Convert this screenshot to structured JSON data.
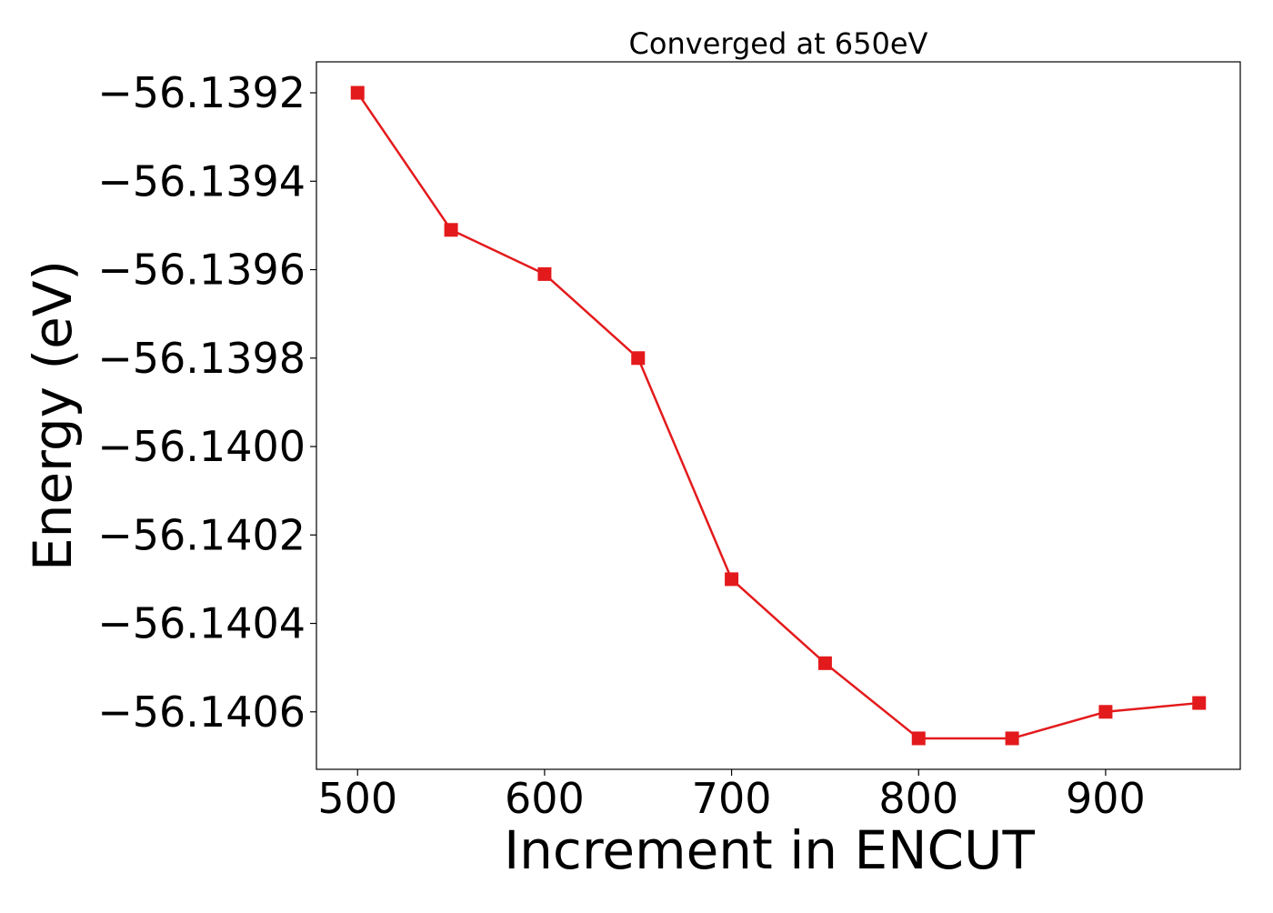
{
  "chart_data": {
    "type": "line",
    "title": "Converged at 650eV",
    "xlabel": "Increment in ENCUT",
    "ylabel": "Energy (eV)",
    "x": [
      500,
      550,
      600,
      650,
      700,
      750,
      800,
      850,
      900,
      950
    ],
    "series": [
      {
        "values": [
          -56.1392,
          -56.13951,
          -56.13961,
          -56.1398,
          -56.1403,
          -56.14049,
          -56.14066,
          -56.14066,
          -56.1406,
          -56.14058
        ],
        "color": "#e31a1c",
        "marker": "square"
      }
    ],
    "xlim": [
      478,
      972
    ],
    "ylim": [
      -56.14073,
      -56.13913
    ],
    "xticks": [
      500,
      600,
      700,
      800,
      900
    ],
    "yticks": [
      -56.1392,
      -56.1394,
      -56.1396,
      -56.1398,
      -56.14,
      -56.1402,
      -56.1404,
      -56.1406
    ],
    "ytick_labels": [
      "−56.1392",
      "−56.1394",
      "−56.1396",
      "−56.1398",
      "−56.1400",
      "−56.1402",
      "−56.1404",
      "−56.1406"
    ],
    "grid": false,
    "legend": "none"
  }
}
